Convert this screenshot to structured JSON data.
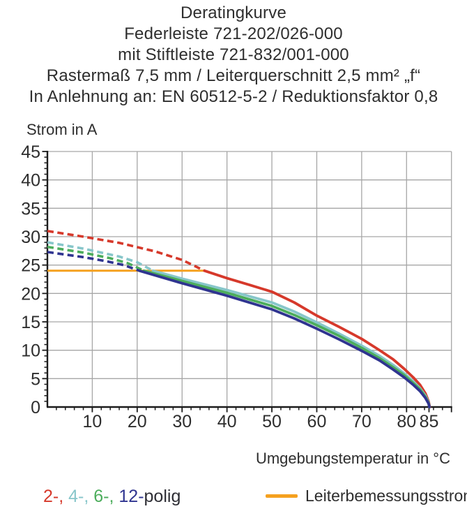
{
  "title_lines": [
    "Deratingkurve",
    "Federleiste 721-202/026-000",
    "mit Stiftleiste 721-832/001-000",
    "Rastermaß 7,5 mm / Leiterquerschnitt 2,5 mm² „f“",
    "In Anlehnung an: EN 60512-5-2 / Reduktionsfaktor 0,8"
  ],
  "chart_data": {
    "type": "line",
    "title": "Deratingkurve",
    "xlabel": "Umgebungstemperatur in °C",
    "ylabel": "Strom in A",
    "xlim": [
      0,
      90
    ],
    "ylim": [
      0,
      45
    ],
    "grid": true,
    "x_gridlines": [
      10,
      20,
      30,
      40,
      50,
      60,
      70,
      80,
      90
    ],
    "y_gridlines": [
      5,
      10,
      15,
      20,
      25,
      30,
      35,
      40,
      45
    ],
    "x_tick_labels": [
      10,
      20,
      30,
      40,
      50,
      60,
      70,
      80,
      85
    ],
    "y_tick_labels": [
      0,
      5,
      10,
      15,
      20,
      25,
      30,
      35,
      40,
      45
    ],
    "x_minor_step": 2,
    "y_minor_step": 1,
    "colors": {
      "grid": "#a6a6a6",
      "axis": "#1c1c1c",
      "tick_text": "#2e2e2e",
      "rated": "#f5a11f"
    },
    "rated_line": {
      "name": "Leiterbemessungsstrom",
      "y": 24,
      "x_start": 0,
      "x_end": 34.8,
      "color": "#f5a11f"
    },
    "series": [
      {
        "name": "2-polig",
        "color": "#d6392b",
        "dashed_points": [
          [
            0,
            31
          ],
          [
            8,
            30
          ],
          [
            16,
            28.9
          ],
          [
            24,
            27.4
          ],
          [
            30,
            25.9
          ],
          [
            35,
            24
          ]
        ],
        "solid_points": [
          [
            35,
            24
          ],
          [
            40,
            22.7
          ],
          [
            45,
            21.5
          ],
          [
            50,
            20.3
          ],
          [
            55,
            18.4
          ],
          [
            60,
            16.1
          ],
          [
            65,
            14.1
          ],
          [
            70,
            12.0
          ],
          [
            74,
            10.0
          ],
          [
            77,
            8.4
          ],
          [
            79.5,
            6.7
          ],
          [
            81.5,
            5.2
          ],
          [
            83,
            3.9
          ],
          [
            84.2,
            2.4
          ],
          [
            84.9,
            1.0
          ],
          [
            85.15,
            0
          ]
        ]
      },
      {
        "name": "4-polig",
        "color": "#87c6ca",
        "dashed_points": [
          [
            0,
            29
          ],
          [
            8,
            27.9
          ],
          [
            16,
            26.5
          ],
          [
            20,
            25.5
          ],
          [
            23.5,
            24
          ]
        ],
        "solid_points": [
          [
            23.5,
            24
          ],
          [
            30,
            22.6
          ],
          [
            40,
            20.6
          ],
          [
            50,
            18.4
          ],
          [
            55,
            16.8
          ],
          [
            60,
            14.9
          ],
          [
            65,
            12.9
          ],
          [
            70,
            10.8
          ],
          [
            74,
            9.0
          ],
          [
            77,
            7.4
          ],
          [
            79.5,
            5.9
          ],
          [
            81.5,
            4.5
          ],
          [
            83,
            3.3
          ],
          [
            84.2,
            2.0
          ],
          [
            84.9,
            0.8
          ],
          [
            85.1,
            0
          ]
        ]
      },
      {
        "name": "6-polig",
        "color": "#4cad5c",
        "dashed_points": [
          [
            0,
            28.2
          ],
          [
            8,
            27.2
          ],
          [
            14,
            26.2
          ],
          [
            18,
            25.3
          ],
          [
            21.5,
            24
          ]
        ],
        "solid_points": [
          [
            21.5,
            24
          ],
          [
            30,
            22.2
          ],
          [
            40,
            20.1
          ],
          [
            50,
            17.8
          ],
          [
            55,
            16.2
          ],
          [
            60,
            14.4
          ],
          [
            65,
            12.5
          ],
          [
            70,
            10.4
          ],
          [
            74,
            8.6
          ],
          [
            77,
            7.0
          ],
          [
            79.5,
            5.6
          ],
          [
            81.5,
            4.2
          ],
          [
            83,
            3.1
          ],
          [
            84.2,
            1.8
          ],
          [
            84.9,
            0.7
          ],
          [
            85.1,
            0
          ]
        ]
      },
      {
        "name": "12-polig",
        "color": "#2f3490",
        "dashed_points": [
          [
            0,
            27.3
          ],
          [
            8,
            26.4
          ],
          [
            13,
            25.7
          ],
          [
            17,
            25.0
          ],
          [
            20.5,
            24
          ]
        ],
        "solid_points": [
          [
            20.5,
            24
          ],
          [
            30,
            21.8
          ],
          [
            40,
            19.6
          ],
          [
            50,
            17.2
          ],
          [
            55,
            15.6
          ],
          [
            60,
            13.8
          ],
          [
            65,
            11.9
          ],
          [
            70,
            9.9
          ],
          [
            74,
            8.2
          ],
          [
            77,
            6.6
          ],
          [
            79.5,
            5.2
          ],
          [
            81.5,
            3.9
          ],
          [
            83,
            2.8
          ],
          [
            84.2,
            1.6
          ],
          [
            84.9,
            0.6
          ],
          [
            85.1,
            0
          ]
        ]
      }
    ]
  },
  "legend": {
    "poles": {
      "parts": [
        {
          "text": "2-,",
          "color": "#d6392b"
        },
        {
          "text": " 4-,",
          "color": "#87c6ca"
        },
        {
          "text": " 6-,",
          "color": "#4cad5c"
        },
        {
          "text": " 12-",
          "color": "#2f3490"
        },
        {
          "text": "polig",
          "color": "#2e2e35"
        }
      ]
    },
    "rated": {
      "label": "Leiterbemessungsstrom",
      "color": "#f5a11f"
    }
  }
}
